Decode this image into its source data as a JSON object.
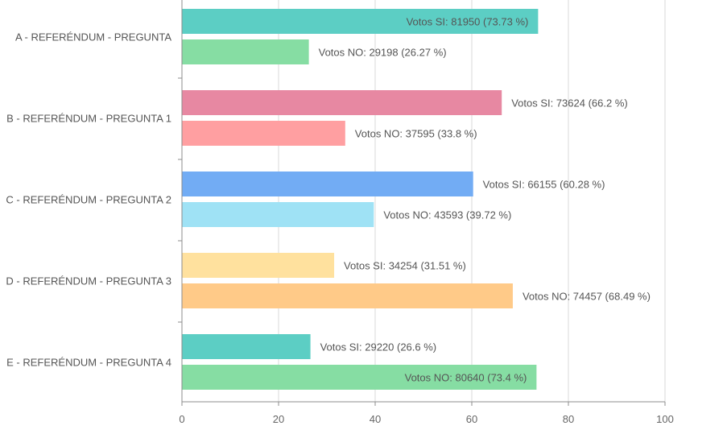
{
  "chart_data": {
    "type": "bar",
    "orientation": "horizontal",
    "categories": [
      "A - REFERÉNDUM - PREGUNTA",
      "B - REFERÉNDUM - PREGUNTA 1",
      "C - REFERÉNDUM - PREGUNTA 2",
      "D - REFERÉNDUM - PREGUNTA 3",
      "E - REFERÉNDUM - PREGUNTA 4"
    ],
    "x_ticks": [
      "0",
      "20",
      "40",
      "60",
      "80",
      "100"
    ],
    "xlim": [
      0,
      100
    ],
    "grid": true,
    "bars": [
      {
        "category_index": 0,
        "value": 73.73,
        "color": "#5ccec4",
        "label": "Votos SI: 81950 (73.73 %)",
        "label_inside": true
      },
      {
        "category_index": 0,
        "value": 26.27,
        "color": "#86dda3",
        "label": "Votos NO: 29198 (26.27 %)",
        "label_inside": false
      },
      {
        "category_index": 1,
        "value": 66.2,
        "color": "#e788a2",
        "label": "Votos SI: 73624 (66.2 %)",
        "label_inside": false
      },
      {
        "category_index": 1,
        "value": 33.8,
        "color": "#ff9fa1",
        "label": "Votos NO: 37595 (33.8 %)",
        "label_inside": false
      },
      {
        "category_index": 2,
        "value": 60.28,
        "color": "#72acf4",
        "label": "Votos SI: 66155 (60.28 %)",
        "label_inside": false
      },
      {
        "category_index": 2,
        "value": 39.72,
        "color": "#9fe2f5",
        "label": "Votos NO: 43593 (39.72 %)",
        "label_inside": false
      },
      {
        "category_index": 3,
        "value": 31.51,
        "color": "#ffe19e",
        "label": "Votos SI: 34254 (31.51 %)",
        "label_inside": false
      },
      {
        "category_index": 3,
        "value": 68.49,
        "color": "#ffca88",
        "label": "Votos NO: 74457 (68.49 %)",
        "label_inside": false
      },
      {
        "category_index": 4,
        "value": 26.6,
        "color": "#5ccec4",
        "label": "Votos SI: 29220 (26.6 %)",
        "label_inside": false
      },
      {
        "category_index": 4,
        "value": 73.4,
        "color": "#86dda3",
        "label": "Votos NO: 80640 (73.4 %)",
        "label_inside": true
      }
    ],
    "colors": {
      "axis": "#8c8c8c",
      "grid": "#d9d9d9",
      "text": "#555555"
    }
  }
}
